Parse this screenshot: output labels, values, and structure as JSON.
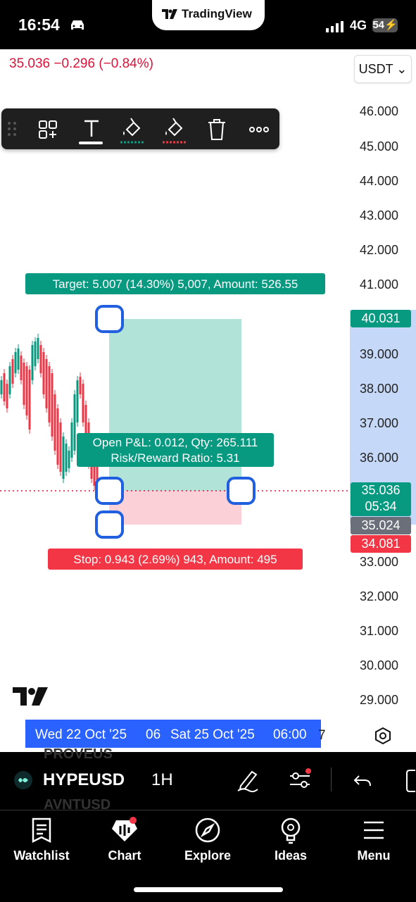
{
  "status_bar": {
    "time": "16:54",
    "network": "4G",
    "battery": "54"
  },
  "app": {
    "brand": "TradingView"
  },
  "header": {
    "price_change": "35.036 −0.296 (−0.84%)",
    "currency": "USDT ⌄"
  },
  "price_axis": [
    "46.000",
    "45.000",
    "44.000",
    "43.000",
    "42.000",
    "41.000",
    "39.000",
    "38.000",
    "37.000",
    "36.000",
    "33.000",
    "32.000",
    "31.000",
    "30.000",
    "29.000"
  ],
  "position": {
    "target_label": "Target: 5.007 (14.30%) 5,007, Amount: 526.55",
    "pnl_line1": "Open P&L: 0.012, Qty: 265.111",
    "pnl_line2": "Risk/Reward Ratio: 5.31",
    "stop_label": "Stop: 0.943 (2.69%) 943, Amount: 495"
  },
  "price_tags": {
    "target": "40.031",
    "current": "35.036",
    "countdown": "05:34",
    "entry": "35.024",
    "stop": "34.081"
  },
  "time_axis": {
    "start": "Wed 22 Oct '25",
    "mid": "06",
    "end": "Sat 25 Oct '25",
    "end_time": "06:00",
    "overflow": "7"
  },
  "symbol_bar": {
    "symbol": "HYPEUSD",
    "interval": "1H",
    "ghost_above": "PROVEUS",
    "ghost_below": "AVNTUSD"
  },
  "tabs": [
    {
      "label": "Watchlist",
      "icon": "watchlist-icon"
    },
    {
      "label": "Chart",
      "icon": "chart-icon"
    },
    {
      "label": "Explore",
      "icon": "compass-icon"
    },
    {
      "label": "Ideas",
      "icon": "lightbulb-icon"
    },
    {
      "label": "Menu",
      "icon": "menu-icon"
    }
  ],
  "colors": {
    "profit": "#089981",
    "loss": "#f23645",
    "accent": "#2962ff",
    "price_red": "#d8143a"
  }
}
